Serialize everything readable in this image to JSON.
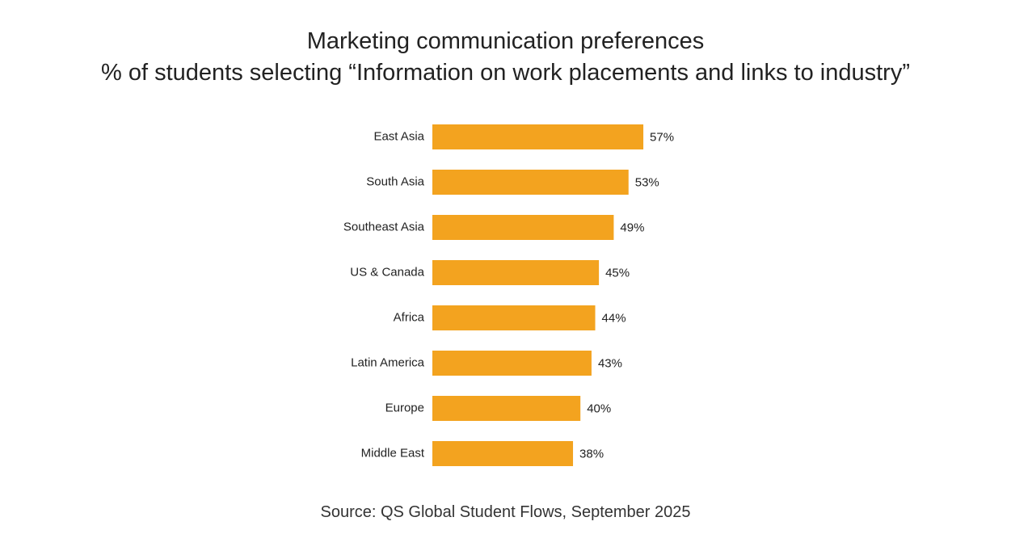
{
  "chart_data": {
    "type": "bar",
    "orientation": "horizontal",
    "title": "Marketing communication preferences",
    "subtitle": "% of students selecting “Information on work placements and links to industry”",
    "categories": [
      "East Asia",
      "South Asia",
      "Southeast Asia",
      "US & Canada",
      "Africa",
      "Latin America",
      "Europe",
      "Middle East"
    ],
    "values": [
      57,
      53,
      49,
      45,
      44,
      43,
      40,
      38
    ],
    "value_labels": [
      "57%",
      "53%",
      "49%",
      "45%",
      "44%",
      "43%",
      "40%",
      "38%"
    ],
    "bar_color": "#F3A31F",
    "xlabel": "",
    "ylabel": "",
    "grid": false,
    "source": "Source: QS Global Student Flows, September 2025"
  }
}
